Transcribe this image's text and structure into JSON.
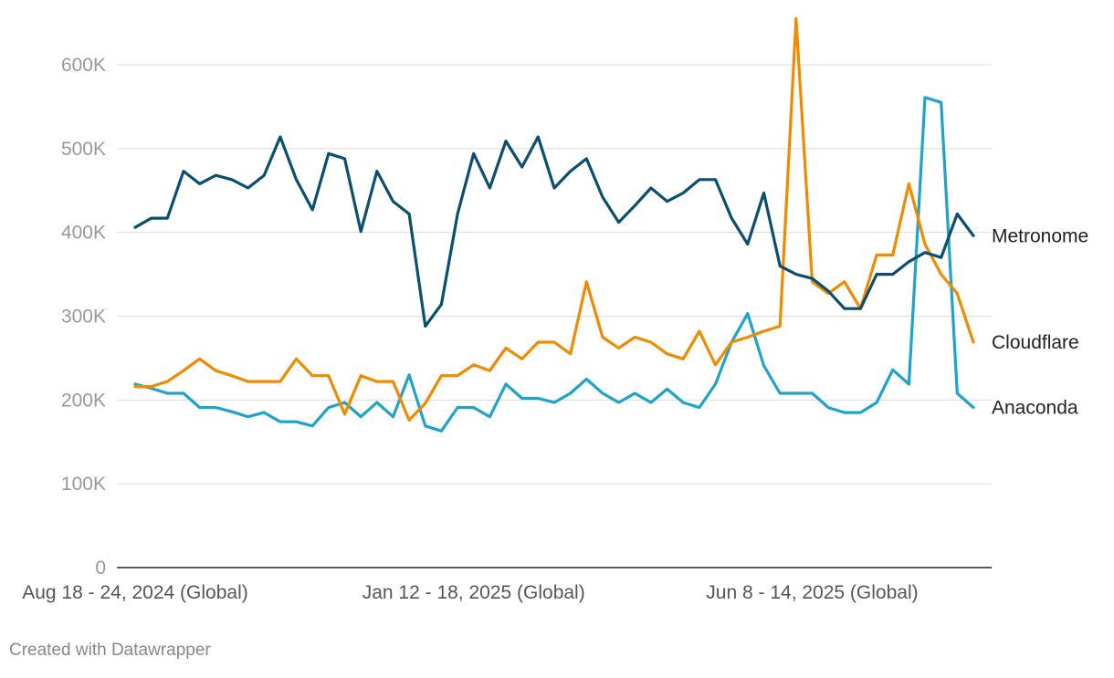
{
  "footer": "Created with Datawrapper",
  "colors": {
    "metronome": "#0b4f70",
    "cloudflare": "#f28a00",
    "anaconda": "#1fa3cb",
    "grid": "#dddddd",
    "tick_text": "#999999",
    "xtick_text": "#555555",
    "baseline": "#222222"
  },
  "chart_data": {
    "type": "line",
    "title": "",
    "xlabel": "",
    "ylabel": "",
    "ylim": [
      0,
      650000
    ],
    "grid": true,
    "legend": "inline labels at right end of lines",
    "y_ticks": [
      {
        "value": 0,
        "label": "0"
      },
      {
        "value": 100000,
        "label": "100K"
      },
      {
        "value": 200000,
        "label": "200K"
      },
      {
        "value": 300000,
        "label": "300K"
      },
      {
        "value": 400000,
        "label": "400K"
      },
      {
        "value": 500000,
        "label": "500K"
      },
      {
        "value": 600000,
        "label": "600K"
      }
    ],
    "x_ticks": [
      {
        "index": 0,
        "label": "Aug 18 - 24, 2024 (Global)"
      },
      {
        "index": 21,
        "label": "Jan 12 - 18, 2025 (Global)"
      },
      {
        "index": 42,
        "label": "Jun 8 - 14, 2025 (Global)"
      }
    ],
    "x_count": 53,
    "series": [
      {
        "name": "Metronome",
        "color": "#0b4f70",
        "values": [
          406000,
          417000,
          417000,
          473000,
          458000,
          468000,
          463000,
          453000,
          468000,
          514000,
          463000,
          427000,
          494000,
          488000,
          401000,
          473000,
          437000,
          422000,
          288000,
          314000,
          422000,
          494000,
          453000,
          509000,
          478000,
          514000,
          453000,
          473000,
          488000,
          442000,
          412000,
          432000,
          453000,
          437000,
          447000,
          463000,
          463000,
          417000,
          386000,
          447000,
          360000,
          350000,
          345000,
          330000,
          309000,
          309000,
          350000,
          350000,
          365000,
          376000,
          370000,
          422000,
          396000
        ]
      },
      {
        "name": "Cloudflare",
        "color": "#f28a00",
        "values": [
          216000,
          216000,
          222000,
          235000,
          249000,
          235000,
          229000,
          222000,
          222000,
          222000,
          249000,
          229000,
          229000,
          183000,
          229000,
          222000,
          222000,
          176000,
          196000,
          229000,
          229000,
          242000,
          235000,
          262000,
          249000,
          269000,
          269000,
          255000,
          341000,
          275000,
          262000,
          275000,
          269000,
          255000,
          249000,
          282000,
          242000,
          269000,
          275000,
          282000,
          288000,
          655000,
          341000,
          327000,
          341000,
          309000,
          373000,
          373000,
          458000,
          386000,
          350000,
          327000,
          269000
        ]
      },
      {
        "name": "Anaconda",
        "color": "#1fa3cb",
        "values": [
          219000,
          214000,
          208000,
          208000,
          191000,
          191000,
          186000,
          180000,
          185000,
          174000,
          174000,
          169000,
          191000,
          197000,
          180000,
          197000,
          180000,
          230000,
          169000,
          163000,
          191000,
          191000,
          180000,
          219000,
          202000,
          202000,
          197000,
          208000,
          225000,
          208000,
          197000,
          208000,
          197000,
          213000,
          197000,
          191000,
          219000,
          269000,
          303000,
          241000,
          208000,
          208000,
          208000,
          191000,
          185000,
          185000,
          197000,
          236000,
          219000,
          561000,
          555000,
          208000,
          191000
        ]
      }
    ]
  }
}
